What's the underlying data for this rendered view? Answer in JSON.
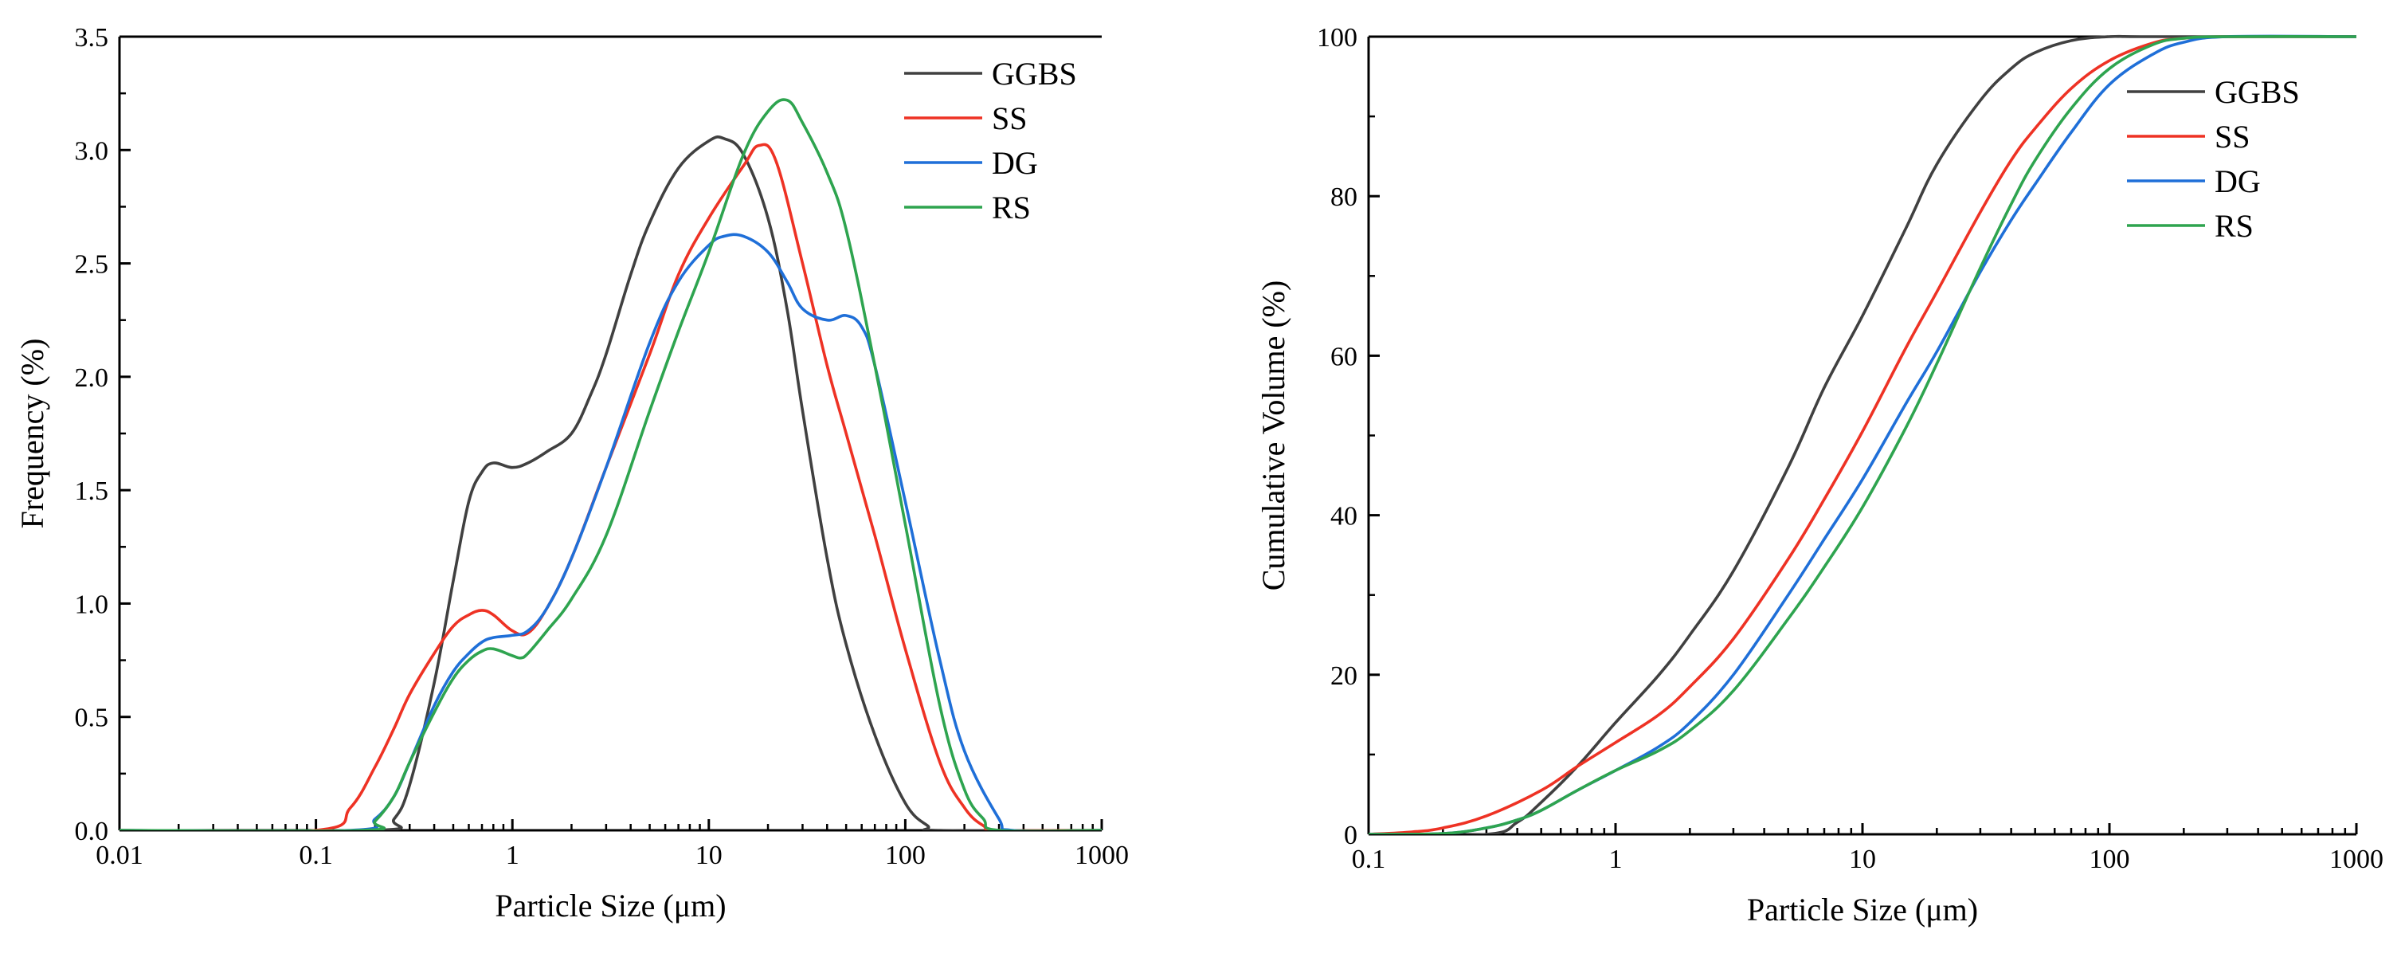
{
  "colors": {
    "GGBS": "#404040",
    "SS": "#ee3224",
    "DG": "#1f6fd8",
    "RS": "#2ea44f",
    "axis": "#000000"
  },
  "chart_data": [
    {
      "type": "line",
      "xscale": "log",
      "xlabel": "Particle Size (μm)",
      "ylabel": "Frequency (%)",
      "xlim": [
        0.01,
        1000
      ],
      "ylim": [
        0,
        3.5
      ],
      "xticks": [
        0.01,
        0.1,
        1,
        10,
        100,
        1000
      ],
      "xtick_labels": [
        "0.01",
        "0.1",
        "1",
        "10",
        "100",
        "1000"
      ],
      "yticks": [
        0,
        0.5,
        1.0,
        1.5,
        2.0,
        2.5,
        3.0,
        3.5
      ],
      "ytick_labels": [
        "0.0",
        "0.5",
        "1.0",
        "1.5",
        "2.0",
        "2.5",
        "3.0",
        "3.5"
      ],
      "legend_position": "top-right",
      "legend": [
        "GGBS",
        "SS",
        "DG",
        "RS"
      ],
      "series": [
        {
          "name": "GGBS",
          "x": [
            0.01,
            0.2,
            0.25,
            0.3,
            0.4,
            0.5,
            0.6,
            0.7,
            0.8,
            1.0,
            1.2,
            1.5,
            2.0,
            2.5,
            3.0,
            4.0,
            5.0,
            7.0,
            10.0,
            12.0,
            15.0,
            20.0,
            25.0,
            30.0,
            40.0,
            50.0,
            70.0,
            100.0,
            130.0,
            150.0,
            1000.0
          ],
          "y": [
            0,
            0,
            0.05,
            0.2,
            0.65,
            1.1,
            1.45,
            1.58,
            1.62,
            1.6,
            1.62,
            1.67,
            1.75,
            1.92,
            2.1,
            2.45,
            2.68,
            2.92,
            3.04,
            3.05,
            2.98,
            2.7,
            2.3,
            1.85,
            1.2,
            0.82,
            0.42,
            0.12,
            0.02,
            0,
            0
          ]
        },
        {
          "name": "SS",
          "x": [
            0.01,
            0.1,
            0.15,
            0.2,
            0.25,
            0.3,
            0.4,
            0.5,
            0.6,
            0.7,
            0.8,
            1.0,
            1.2,
            1.5,
            2.0,
            3.0,
            5.0,
            7.0,
            10.0,
            15.0,
            18.0,
            22.0,
            30.0,
            40.0,
            50.0,
            70.0,
            100.0,
            150.0,
            200.0,
            250.0,
            300.0,
            1000.0
          ],
          "y": [
            0,
            0,
            0.1,
            0.28,
            0.45,
            0.6,
            0.78,
            0.9,
            0.95,
            0.97,
            0.95,
            0.88,
            0.87,
            0.98,
            1.2,
            1.6,
            2.1,
            2.45,
            2.7,
            2.93,
            3.02,
            2.95,
            2.5,
            2.05,
            1.75,
            1.3,
            0.8,
            0.3,
            0.1,
            0.02,
            0,
            0
          ]
        },
        {
          "name": "DG",
          "x": [
            0.01,
            0.15,
            0.2,
            0.25,
            0.3,
            0.4,
            0.5,
            0.6,
            0.7,
            0.8,
            1.0,
            1.2,
            1.5,
            2.0,
            3.0,
            5.0,
            7.0,
            10.0,
            12.0,
            15.0,
            20.0,
            25.0,
            30.0,
            40.0,
            50.0,
            60.0,
            70.0,
            100.0,
            150.0,
            200.0,
            300.0,
            350.0,
            1000.0
          ],
          "y": [
            0,
            0,
            0.05,
            0.15,
            0.3,
            0.55,
            0.7,
            0.78,
            0.83,
            0.85,
            0.86,
            0.88,
            0.98,
            1.2,
            1.6,
            2.15,
            2.42,
            2.58,
            2.62,
            2.62,
            2.55,
            2.42,
            2.3,
            2.25,
            2.27,
            2.22,
            2.05,
            1.45,
            0.75,
            0.35,
            0.05,
            0,
            0
          ]
        },
        {
          "name": "RS",
          "x": [
            0.01,
            0.17,
            0.2,
            0.25,
            0.3,
            0.4,
            0.5,
            0.6,
            0.7,
            0.8,
            1.0,
            1.1,
            1.2,
            1.5,
            2.0,
            3.0,
            5.0,
            7.0,
            10.0,
            15.0,
            20.0,
            25.0,
            30.0,
            40.0,
            50.0,
            70.0,
            100.0,
            150.0,
            200.0,
            250.0,
            300.0,
            1000.0
          ],
          "y": [
            0,
            0,
            0.04,
            0.15,
            0.3,
            0.52,
            0.67,
            0.75,
            0.79,
            0.8,
            0.77,
            0.76,
            0.78,
            0.88,
            1.02,
            1.3,
            1.85,
            2.2,
            2.55,
            2.98,
            3.17,
            3.22,
            3.12,
            2.9,
            2.65,
            2.05,
            1.35,
            0.55,
            0.18,
            0.05,
            0,
            0
          ]
        }
      ]
    },
    {
      "type": "line",
      "xscale": "log",
      "xlabel": "Particle Size (μm)",
      "ylabel": "Cumulative Volume (%)",
      "xlim": [
        0.1,
        1000
      ],
      "ylim": [
        0,
        100
      ],
      "xticks": [
        0.1,
        1,
        10,
        100,
        1000
      ],
      "xtick_labels": [
        "0.1",
        "1",
        "10",
        "100",
        "1000"
      ],
      "yticks": [
        0,
        20,
        40,
        60,
        80,
        100
      ],
      "ytick_labels": [
        "0",
        "20",
        "40",
        "60",
        "80",
        "100"
      ],
      "legend_position": "top-right",
      "legend": [
        "GGBS",
        "SS",
        "DG",
        "RS"
      ],
      "series": [
        {
          "name": "GGBS",
          "x": [
            0.1,
            0.3,
            0.4,
            0.5,
            0.7,
            1.0,
            1.5,
            2.0,
            3.0,
            5.0,
            7.0,
            10.0,
            15.0,
            20.0,
            30.0,
            40.0,
            50.0,
            70.0,
            100.0,
            150.0,
            1000.0
          ],
          "y": [
            0,
            0,
            1.5,
            4,
            8.5,
            14,
            20,
            25,
            33,
            46,
            56,
            65,
            76,
            84,
            92,
            96,
            98,
            99.5,
            100,
            100,
            100
          ]
        },
        {
          "name": "SS",
          "x": [
            0.1,
            0.15,
            0.2,
            0.3,
            0.5,
            0.7,
            1.0,
            1.5,
            2.0,
            3.0,
            5.0,
            7.0,
            10.0,
            15.0,
            20.0,
            30.0,
            40.0,
            50.0,
            70.0,
            100.0,
            150.0,
            200.0,
            300.0,
            1000.0
          ],
          "y": [
            0,
            0.3,
            0.8,
            2.3,
            5.5,
            8.5,
            11.5,
            15,
            18.5,
            24.5,
            34.5,
            42,
            50.5,
            61,
            68,
            78,
            84.5,
            88.5,
            93.5,
            97,
            99.2,
            99.8,
            100,
            100
          ]
        },
        {
          "name": "DG",
          "x": [
            0.1,
            0.2,
            0.3,
            0.4,
            0.5,
            0.7,
            1.0,
            1.5,
            2.0,
            3.0,
            5.0,
            7.0,
            10.0,
            15.0,
            20.0,
            30.0,
            40.0,
            50.0,
            70.0,
            100.0,
            150.0,
            200.0,
            300.0,
            1000.0
          ],
          "y": [
            0,
            0.1,
            0.8,
            1.8,
            3,
            5.5,
            8,
            11,
            14,
            20,
            30,
            37,
            44.5,
            54,
            60.5,
            70.5,
            77,
            81.5,
            88,
            94,
            97.8,
            99.3,
            100,
            100
          ]
        },
        {
          "name": "RS",
          "x": [
            0.1,
            0.2,
            0.3,
            0.4,
            0.5,
            0.7,
            1.0,
            1.5,
            2.0,
            3.0,
            5.0,
            7.0,
            10.0,
            15.0,
            20.0,
            30.0,
            40.0,
            50.0,
            70.0,
            100.0,
            150.0,
            200.0,
            300.0,
            1000.0
          ],
          "y": [
            0,
            0.1,
            0.8,
            1.8,
            3,
            5.5,
            8,
            10.5,
            13,
            18,
            27,
            33.5,
            41,
            51,
            59,
            71,
            79,
            84.5,
            91,
            96,
            99,
            99.8,
            100,
            100
          ]
        }
      ]
    }
  ]
}
